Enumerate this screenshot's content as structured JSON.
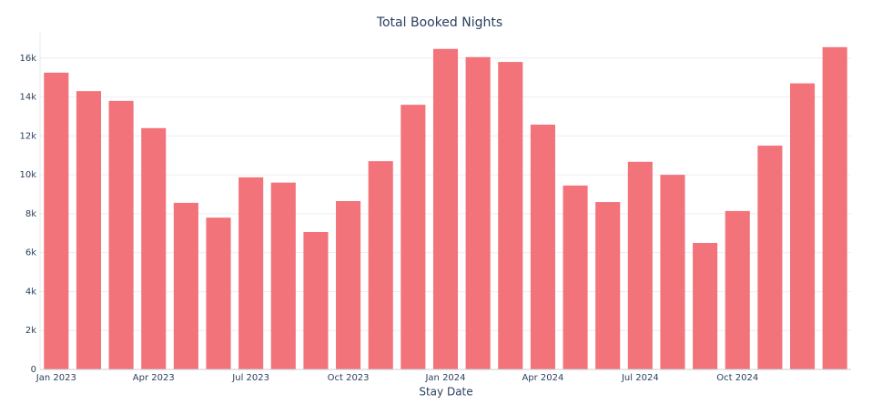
{
  "chart_data": {
    "type": "bar",
    "title": "Total Booked Nights",
    "x_label": "Stay Date",
    "categories": [
      "Jan 2023",
      null,
      null,
      "Apr 2023",
      null,
      null,
      "Jul 2023",
      null,
      null,
      "Oct 2023",
      null,
      null,
      "Jan 2024",
      null,
      null,
      "Apr 2024",
      null,
      null,
      "Jul 2024",
      null,
      null,
      "Oct 2024",
      null,
      null,
      null
    ],
    "values": [
      15250,
      14300,
      13800,
      12400,
      8560,
      7800,
      9870,
      9600,
      7060,
      8650,
      10700,
      13600,
      16470,
      16050,
      15800,
      12580,
      9450,
      8600,
      10670,
      10000,
      6500,
      8140,
      11500,
      14700,
      16560
    ],
    "color": "#f2737a",
    "ylim": [
      0,
      17300
    ],
    "yticks": [
      0,
      {
        "value": 2000,
        "label": "2k"
      },
      {
        "value": 4000,
        "label": "4k"
      },
      {
        "value": 6000,
        "label": "6k"
      },
      {
        "value": 8000,
        "label": "8k"
      },
      {
        "value": 10000,
        "label": "10k"
      },
      {
        "value": 12000,
        "label": "12k"
      },
      {
        "value": 14000,
        "label": "14k"
      },
      {
        "value": 16000,
        "label": "16k"
      }
    ],
    "grid": true
  }
}
